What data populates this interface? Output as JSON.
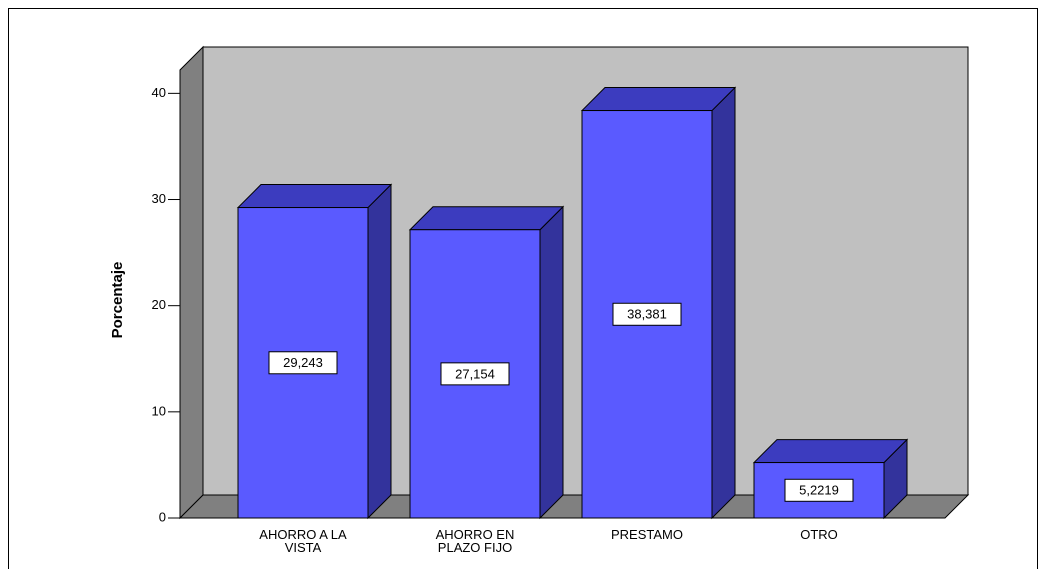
{
  "chart_data": {
    "type": "bar3d",
    "ylabel": "Porcentaje",
    "categories": [
      "AHORRO A LA VISTA",
      "AHORRO EN PLAZO FIJO",
      "PRESTAMO",
      "OTRO"
    ],
    "values": [
      29.243,
      27.154,
      38.381,
      5.2219
    ],
    "value_labels": [
      "29,243",
      "27,154",
      "38,381",
      "5,2219"
    ],
    "color": "#5a5aff",
    "ylim": [
      0,
      42.2
    ],
    "yticks": [
      0,
      10,
      20,
      30,
      40
    ]
  }
}
